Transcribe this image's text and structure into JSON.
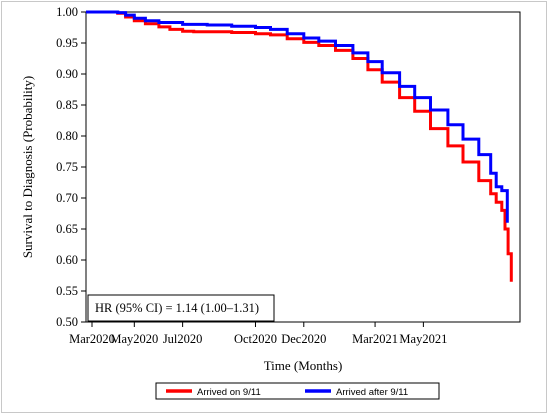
{
  "chart_data": {
    "type": "line",
    "xlabel": "Time (Months)",
    "ylabel": "Survival to Diagnosis (Probability)",
    "x_ticks": [
      "Mar2020",
      "May2020",
      "Jul2020",
      "Oct2020",
      "Dec2020",
      "Mar2021",
      "May2021"
    ],
    "y_ticks": [
      "0.50",
      "0.55",
      "0.60",
      "0.65",
      "0.70",
      "0.75",
      "0.80",
      "0.85",
      "0.90",
      "0.95",
      "1.00"
    ],
    "ylim": [
      0.5,
      1.0
    ],
    "xlim": [
      "2020-03-01",
      "2021-08-31"
    ],
    "annotation": "HR (95% CI) = 1.14 (1.00–1.31)",
    "legend_position": "bottom",
    "series": [
      {
        "name": "Arrived on 9/11",
        "color": "#ff0000",
        "points": [
          [
            "2020-03-01",
            1.0
          ],
          [
            "2020-03-10",
            1.0
          ],
          [
            "2020-04-01",
            1.0
          ],
          [
            "2020-04-10",
            0.998
          ],
          [
            "2020-04-20",
            0.992
          ],
          [
            "2020-05-01",
            0.986
          ],
          [
            "2020-05-15",
            0.981
          ],
          [
            "2020-06-01",
            0.976
          ],
          [
            "2020-06-15",
            0.972
          ],
          [
            "2020-07-01",
            0.969
          ],
          [
            "2020-07-15",
            0.968
          ],
          [
            "2020-08-01",
            0.968
          ],
          [
            "2020-09-01",
            0.967
          ],
          [
            "2020-10-01",
            0.965
          ],
          [
            "2020-10-20",
            0.963
          ],
          [
            "2020-11-10",
            0.957
          ],
          [
            "2020-12-01",
            0.951
          ],
          [
            "2020-12-20",
            0.946
          ],
          [
            "2021-01-10",
            0.938
          ],
          [
            "2021-02-01",
            0.925
          ],
          [
            "2021-02-20",
            0.907
          ],
          [
            "2021-03-10",
            0.887
          ],
          [
            "2021-04-01",
            0.862
          ],
          [
            "2021-04-20",
            0.84
          ],
          [
            "2021-05-10",
            0.812
          ],
          [
            "2021-06-01",
            0.784
          ],
          [
            "2021-06-20",
            0.758
          ],
          [
            "2021-07-10",
            0.728
          ],
          [
            "2021-07-25",
            0.707
          ],
          [
            "2021-08-01",
            0.693
          ],
          [
            "2021-08-08",
            0.68
          ],
          [
            "2021-08-12",
            0.65
          ],
          [
            "2021-08-16",
            0.61
          ],
          [
            "2021-08-20",
            0.565
          ]
        ]
      },
      {
        "name": "Arrived after 9/11",
        "color": "#0000ff",
        "points": [
          [
            "2020-03-01",
            1.0
          ],
          [
            "2020-04-01",
            1.0
          ],
          [
            "2020-04-10",
            0.999
          ],
          [
            "2020-04-20",
            0.995
          ],
          [
            "2020-05-01",
            0.99
          ],
          [
            "2020-05-15",
            0.986
          ],
          [
            "2020-06-01",
            0.983
          ],
          [
            "2020-07-01",
            0.98
          ],
          [
            "2020-08-01",
            0.979
          ],
          [
            "2020-09-01",
            0.977
          ],
          [
            "2020-10-01",
            0.975
          ],
          [
            "2020-10-20",
            0.972
          ],
          [
            "2020-11-10",
            0.965
          ],
          [
            "2020-12-01",
            0.958
          ],
          [
            "2020-12-20",
            0.953
          ],
          [
            "2021-01-10",
            0.946
          ],
          [
            "2021-02-01",
            0.934
          ],
          [
            "2021-02-20",
            0.92
          ],
          [
            "2021-03-10",
            0.902
          ],
          [
            "2021-04-01",
            0.88
          ],
          [
            "2021-04-20",
            0.862
          ],
          [
            "2021-05-10",
            0.842
          ],
          [
            "2021-06-01",
            0.818
          ],
          [
            "2021-06-20",
            0.795
          ],
          [
            "2021-07-10",
            0.77
          ],
          [
            "2021-07-25",
            0.74
          ],
          [
            "2021-08-01",
            0.718
          ],
          [
            "2021-08-08",
            0.712
          ],
          [
            "2021-08-15",
            0.712
          ],
          [
            "2021-08-15",
            0.66
          ]
        ]
      }
    ]
  }
}
